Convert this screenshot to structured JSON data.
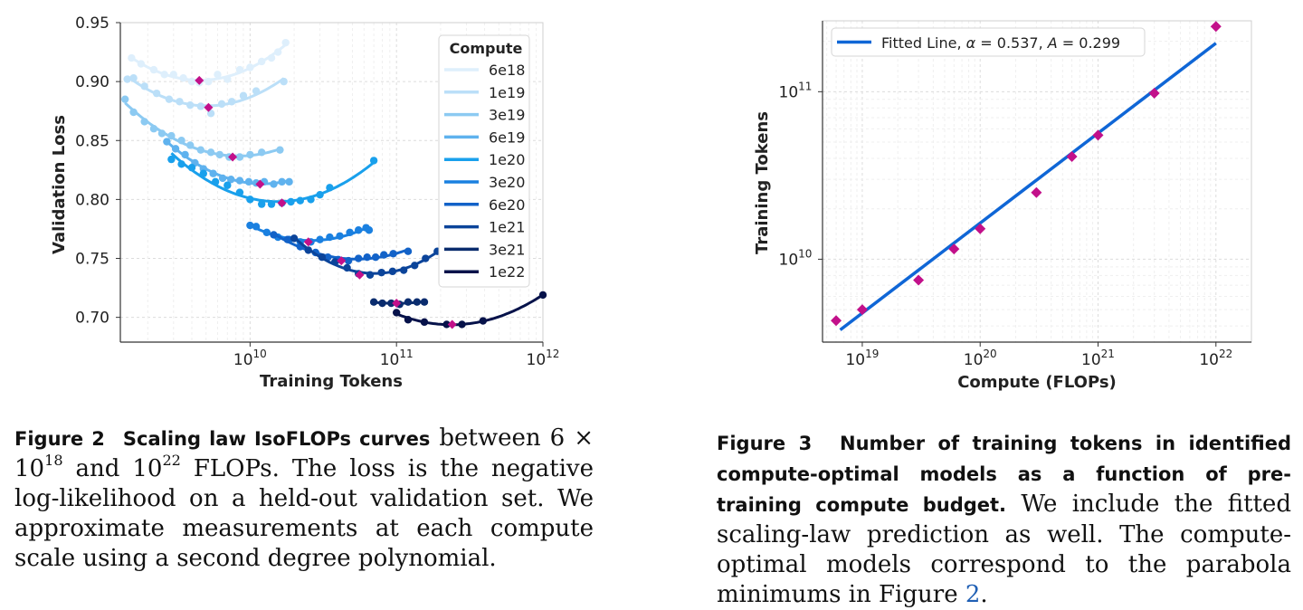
{
  "figure2": {
    "chart_data": {
      "type": "scatter",
      "xlabel": "Training Tokens",
      "ylabel": "Validation Loss",
      "xscale": "log",
      "xlim": [
        1300000000.0,
        1000000000000.0
      ],
      "ylim": [
        0.679,
        0.95
      ],
      "yticks": [
        "0.95",
        "0.90",
        "0.85",
        "0.80",
        "0.75",
        "0.70"
      ],
      "xticks": [
        {
          "base": "10",
          "exp": "10"
        },
        {
          "base": "10",
          "exp": "11"
        },
        {
          "base": "10",
          "exp": "12"
        }
      ],
      "grid": true,
      "legend": {
        "title": "Compute",
        "placement": "top-right"
      },
      "series": [
        {
          "name": "6e18",
          "color": "#deeffc",
          "xmin": 1550000000.0,
          "xmax": 17500000000.0,
          "points": [
            [
              1550000000.0,
              0.92
            ],
            [
              1800000000.0,
              0.915
            ],
            [
              2200000000.0,
              0.91
            ],
            [
              2600000000.0,
              0.906
            ],
            [
              3000000000.0,
              0.906
            ],
            [
              3500000000.0,
              0.903
            ],
            [
              4000000000.0,
              0.9
            ],
            [
              4500000000.0,
              0.899
            ],
            [
              5200000000.0,
              0.9
            ],
            [
              6000000000.0,
              0.906
            ],
            [
              7000000000.0,
              0.902
            ],
            [
              8500000000.0,
              0.91
            ],
            [
              10000000000.0,
              0.912
            ],
            [
              12000000000.0,
              0.917
            ],
            [
              14000000000.0,
              0.92
            ],
            [
              15500000000.0,
              0.925
            ],
            [
              17500000000.0,
              0.933
            ]
          ],
          "opt": [
            4500000000.0,
            0.901
          ]
        },
        {
          "name": "1e19",
          "color": "#bbdff8",
          "xmin": 1450000000.0,
          "xmax": 17000000000.0,
          "points": [
            [
              1450000000.0,
              0.902
            ],
            [
              1600000000.0,
              0.903
            ],
            [
              1900000000.0,
              0.896
            ],
            [
              2300000000.0,
              0.89
            ],
            [
              2800000000.0,
              0.885
            ],
            [
              3300000000.0,
              0.883
            ],
            [
              3900000000.0,
              0.88
            ],
            [
              4600000000.0,
              0.879
            ],
            [
              5400000000.0,
              0.873
            ],
            [
              6400000000.0,
              0.881
            ],
            [
              7500000000.0,
              0.883
            ],
            [
              9000000000.0,
              0.888
            ],
            [
              11000000000.0,
              0.892
            ],
            [
              17000000000.0,
              0.9
            ]
          ],
          "opt": [
            5200000000.0,
            0.878
          ]
        },
        {
          "name": "3e19",
          "color": "#8ccaf2",
          "xmin": 1400000000.0,
          "xmax": 16000000000.0,
          "points": [
            [
              1400000000.0,
              0.885
            ],
            [
              1600000000.0,
              0.874
            ],
            [
              1900000000.0,
              0.866
            ],
            [
              2200000000.0,
              0.86
            ],
            [
              2500000000.0,
              0.856
            ],
            [
              2900000000.0,
              0.854
            ],
            [
              3400000000.0,
              0.85
            ],
            [
              3900000000.0,
              0.846
            ],
            [
              4600000000.0,
              0.842
            ],
            [
              5400000000.0,
              0.84
            ],
            [
              6200000000.0,
              0.838
            ],
            [
              7200000000.0,
              0.836
            ],
            [
              8500000000.0,
              0.836
            ],
            [
              10000000000.0,
              0.838
            ],
            [
              12000000000.0,
              0.84
            ],
            [
              16000000000.0,
              0.842
            ]
          ],
          "opt": [
            7600000000.0,
            0.836
          ]
        },
        {
          "name": "6e19",
          "color": "#5fb2ee",
          "xmin": 2700000000.0,
          "xmax": 18500000000.0,
          "points": [
            [
              2700000000.0,
              0.849
            ],
            [
              3100000000.0,
              0.843
            ],
            [
              3600000000.0,
              0.838
            ],
            [
              4200000000.0,
              0.831
            ],
            [
              4800000000.0,
              0.826
            ],
            [
              5600000000.0,
              0.822
            ],
            [
              6500000000.0,
              0.818
            ],
            [
              7400000000.0,
              0.817
            ],
            [
              8500000000.0,
              0.816
            ],
            [
              9800000000.0,
              0.815
            ],
            [
              11000000000.0,
              0.814
            ],
            [
              12500000000.0,
              0.815
            ],
            [
              14500000000.0,
              0.813
            ],
            [
              16500000000.0,
              0.815
            ],
            [
              18500000000.0,
              0.815
            ]
          ],
          "opt": [
            11700000000.0,
            0.813
          ]
        },
        {
          "name": "1e20",
          "color": "#19a0ec",
          "xmin": 2900000000.0,
          "xmax": 70000000000.0,
          "points": [
            [
              2900000000.0,
              0.834
            ],
            [
              3400000000.0,
              0.83
            ],
            [
              4000000000.0,
              0.827
            ],
            [
              4800000000.0,
              0.822
            ],
            [
              5800000000.0,
              0.815
            ],
            [
              7000000000.0,
              0.812
            ],
            [
              8500000000.0,
              0.806
            ],
            [
              10000000000.0,
              0.8
            ],
            [
              12000000000.0,
              0.796
            ],
            [
              14000000000.0,
              0.796
            ],
            [
              16500000000.0,
              0.797
            ],
            [
              19000000000.0,
              0.798
            ],
            [
              22000000000.0,
              0.799
            ],
            [
              26000000000.0,
              0.8
            ],
            [
              30000000000.0,
              0.804
            ],
            [
              35000000000.0,
              0.81
            ],
            [
              70000000000.0,
              0.833
            ]
          ],
          "opt": [
            16500000000.0,
            0.797
          ]
        },
        {
          "name": "3e20",
          "color": "#1a80e0",
          "xmin": 10000000000.0,
          "xmax": 65000000000.0,
          "points": [
            [
              10000000000.0,
              0.778
            ],
            [
              11000000000.0,
              0.777
            ],
            [
              13000000000.0,
              0.772
            ],
            [
              15500000000.0,
              0.768
            ],
            [
              18500000000.0,
              0.766
            ],
            [
              22000000000.0,
              0.764
            ],
            [
              26000000000.0,
              0.764
            ],
            [
              30000000000.0,
              0.766
            ],
            [
              35000000000.0,
              0.768
            ],
            [
              41000000000.0,
              0.769
            ],
            [
              48000000000.0,
              0.772
            ],
            [
              55000000000.0,
              0.774
            ],
            [
              62000000000.0,
              0.776
            ],
            [
              65000000000.0,
              0.774
            ]
          ],
          "opt": [
            25000000000.0,
            0.764
          ]
        },
        {
          "name": "6e20",
          "color": "#1262c8",
          "xmin": 14500000000.0,
          "xmax": 120000000000.0,
          "points": [
            [
              14500000000.0,
              0.77
            ],
            [
              18000000000.0,
              0.766
            ],
            [
              22000000000.0,
              0.76
            ],
            [
              28000000000.0,
              0.755
            ],
            [
              34000000000.0,
              0.751
            ],
            [
              40000000000.0,
              0.749
            ],
            [
              47000000000.0,
              0.748
            ],
            [
              55000000000.0,
              0.75
            ],
            [
              63000000000.0,
              0.751
            ],
            [
              72000000000.0,
              0.751
            ],
            [
              82000000000.0,
              0.753
            ],
            [
              95000000000.0,
              0.754
            ],
            [
              120000000000.0,
              0.756
            ]
          ],
          "opt": [
            42000000000.0,
            0.748
          ]
        },
        {
          "name": "1e21",
          "color": "#0b449a",
          "xmin": 20000000000.0,
          "xmax": 190000000000.0,
          "points": [
            [
              20000000000.0,
              0.767
            ],
            [
              25000000000.0,
              0.757
            ],
            [
              31000000000.0,
              0.751
            ],
            [
              38000000000.0,
              0.747
            ],
            [
              46000000000.0,
              0.742
            ],
            [
              55000000000.0,
              0.737
            ],
            [
              66000000000.0,
              0.736
            ],
            [
              79000000000.0,
              0.738
            ],
            [
              94000000000.0,
              0.739
            ],
            [
              112000000000.0,
              0.74
            ],
            [
              133000000000.0,
              0.744
            ],
            [
              158000000000.0,
              0.75
            ],
            [
              190000000000.0,
              0.756
            ]
          ],
          "opt": [
            56000000000.0,
            0.736
          ]
        },
        {
          "name": "3e21",
          "color": "#0a2c6e",
          "xmin": 70000000000.0,
          "xmax": 155000000000.0,
          "points": [
            [
              70000000000.0,
              0.713
            ],
            [
              80000000000.0,
              0.712
            ],
            [
              92000000000.0,
              0.712
            ],
            [
              105000000000.0,
              0.711
            ],
            [
              120000000000.0,
              0.713
            ],
            [
              138000000000.0,
              0.713
            ],
            [
              155000000000.0,
              0.713
            ]
          ],
          "opt": [
            100000000000.0,
            0.712
          ]
        },
        {
          "name": "1e22",
          "color": "#06124a",
          "xmin": 100000000000.0,
          "xmax": 1000000000000.0,
          "points": [
            [
              100000000000.0,
              0.704
            ],
            [
              120000000000.0,
              0.698
            ],
            [
              155000000000.0,
              0.696
            ],
            [
              220000000000.0,
              0.694
            ],
            [
              280000000000.0,
              0.694
            ],
            [
              390000000000.0,
              0.697
            ],
            [
              1000000000000.0,
              0.719
            ]
          ],
          "opt": [
            240000000000.0,
            0.694
          ]
        }
      ],
      "optimum_color": "#c2108a"
    }
  },
  "figure3": {
    "chart_data": {
      "type": "scatter",
      "xlabel": "Compute (FLOPs)",
      "ylabel": "Training Tokens",
      "xscale": "log",
      "yscale": "log",
      "xlim": [
        4.6e+18,
        2e+22
      ],
      "ylim": [
        3200000000.0,
        265000000000.0
      ],
      "xticks": [
        {
          "base": "10",
          "exp": "19"
        },
        {
          "base": "10",
          "exp": "20"
        },
        {
          "base": "10",
          "exp": "21"
        },
        {
          "base": "10",
          "exp": "22"
        }
      ],
      "yticks": [
        {
          "base": "10",
          "exp": "10"
        },
        {
          "base": "10",
          "exp": "11"
        }
      ],
      "grid": true,
      "legend": {
        "placement": "top-left",
        "label_prefix": "Fitted Line, ",
        "alpha_symbol": "α",
        "alpha_text": " = 0.537, ",
        "a_symbol": "A",
        "a_text": " = 0.299"
      },
      "fitted_line": {
        "alpha": 0.537,
        "A": 0.299,
        "x_range": [
          6.5e+18,
          1e+22
        ],
        "color": "#0f66d6"
      },
      "points": [
        [
          6e+18,
          4300000000.0
        ],
        [
          1e+19,
          5000000000.0
        ],
        [
          3e+19,
          7500000000.0
        ],
        [
          6e+19,
          11500000000.0
        ],
        [
          1e+20,
          15200000000.0
        ],
        [
          3e+20,
          25000000000.0
        ],
        [
          6e+20,
          41000000000.0
        ],
        [
          1e+21,
          55000000000.0
        ],
        [
          3e+21,
          98000000000.0
        ],
        [
          1e+22,
          245000000000.0
        ]
      ],
      "point_color": "#c2108a"
    }
  },
  "caption2": {
    "label": "Figure 2",
    "title": "Scaling law IsoFLOPs curves",
    "t1": "between 6 × 10",
    "sup1": "18",
    "t2": "and 10",
    "sup2": "22",
    "t3": "FLOPs. The loss is the negative log-likelihood on a held-out validation set. We approximate measurements at each compute scale using a second degree polynomial."
  },
  "caption3": {
    "label": "Figure 3",
    "title": "Number of training tokens in identified compute-optimal models as a function of pre-training compute budget.",
    "t1": "We include the fitted scaling-law prediction as well. The compute-optimal models correspond to the parabola minimums in Figure",
    "ref": "2",
    "t2": "."
  }
}
